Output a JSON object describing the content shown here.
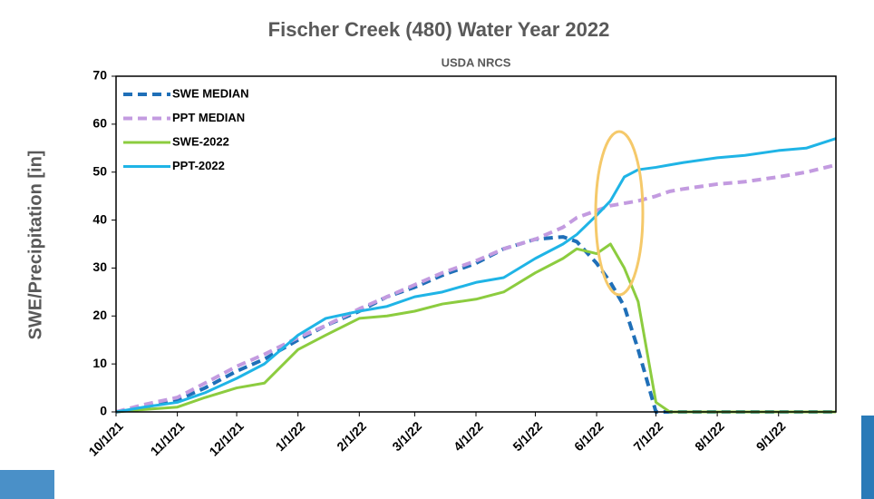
{
  "chart_data": {
    "type": "line",
    "title": "Fischer Creek (480) Water Year 2022",
    "subtitle": "USDA NRCS",
    "y_label": "SWE/Precipitation [in]",
    "x": [
      "10/1/21",
      "10/15/21",
      "11/1/21",
      "11/15/21",
      "12/1/21",
      "12/15/21",
      "1/1/22",
      "1/15/22",
      "2/1/22",
      "2/15/22",
      "3/1/22",
      "3/15/22",
      "4/1/22",
      "4/15/22",
      "5/1/22",
      "5/15/22",
      "5/22/22",
      "6/1/22",
      "6/8/22",
      "6/15/22",
      "6/22/22",
      "7/1/22",
      "7/8/22",
      "7/15/22",
      "8/1/22",
      "8/15/22",
      "9/1/22",
      "9/15/22",
      "9/30/22"
    ],
    "xlim": [
      "10/1/21",
      "9/30/22"
    ],
    "xticks": [
      "10/1/21",
      "11/1/21",
      "12/1/21",
      "1/1/22",
      "2/1/22",
      "3/1/22",
      "4/1/22",
      "5/1/22",
      "6/1/22",
      "7/1/22",
      "8/1/22",
      "9/1/22"
    ],
    "ylim": [
      0,
      70
    ],
    "yticks": [
      0,
      10,
      20,
      30,
      40,
      50,
      60,
      70
    ],
    "series": [
      {
        "name": "SWE MEDIAN",
        "color": "#1f6fb8",
        "dash": true,
        "values": [
          0,
          1,
          2.5,
          5,
          8.5,
          11,
          15,
          18,
          21,
          24,
          26,
          28.5,
          31,
          34,
          36,
          36.5,
          35.5,
          31,
          27,
          22,
          13,
          0,
          0,
          0,
          0,
          0,
          0,
          0,
          0
        ]
      },
      {
        "name": "PPT MEDIAN",
        "color": "#c39be0",
        "dash": true,
        "values": [
          0,
          1.5,
          3,
          6,
          9.5,
          12,
          15.5,
          18,
          21.5,
          24,
          26.5,
          29,
          31.5,
          34,
          36,
          38.5,
          40.5,
          42,
          43,
          43.5,
          44,
          45,
          46,
          46.5,
          47.5,
          48,
          49,
          50,
          51.5
        ]
      },
      {
        "name": "SWE-2022",
        "color": "#8ccc3f",
        "dash": false,
        "values": [
          0,
          0.5,
          1,
          3,
          5,
          6,
          13,
          16,
          19.5,
          20,
          21,
          22.5,
          23.5,
          25,
          29,
          32,
          34,
          33,
          35,
          30,
          23,
          2,
          0,
          0,
          0,
          0,
          0,
          0,
          0
        ]
      },
      {
        "name": "PPT-2022",
        "color": "#1fb4e6",
        "dash": false,
        "values": [
          0,
          1,
          2,
          4,
          7,
          10,
          16,
          19.5,
          21,
          22,
          24,
          25,
          27,
          28,
          32,
          35,
          37,
          41,
          44,
          49,
          50.5,
          51,
          51.5,
          52,
          53,
          53.5,
          54.5,
          55,
          57
        ]
      }
    ],
    "legend": "upper left"
  }
}
